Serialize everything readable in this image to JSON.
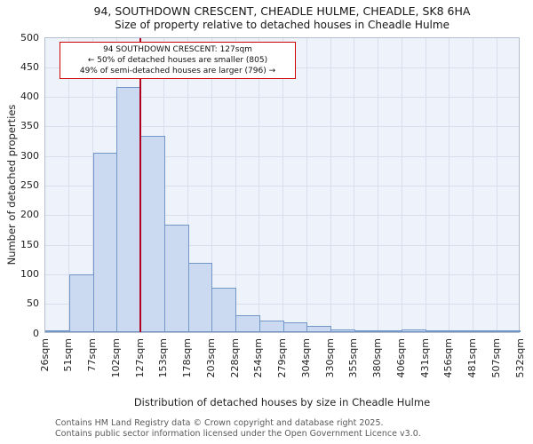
{
  "chart_data": {
    "type": "bar",
    "title": "94, SOUTHDOWN CRESCENT, CHEADLE HULME, CHEADLE, SK8 6HA",
    "subtitle": "Size of property relative to detached houses in Cheadle Hulme",
    "xlabel": "Distribution of detached houses by size in Cheadle Hulme",
    "ylabel": "Number of detached properties",
    "ylim": [
      0,
      500
    ],
    "ytick_step": 50,
    "grid": true,
    "categories": [
      "26sqm",
      "51sqm",
      "77sqm",
      "102sqm",
      "127sqm",
      "153sqm",
      "178sqm",
      "203sqm",
      "228sqm",
      "254sqm",
      "279sqm",
      "304sqm",
      "330sqm",
      "355sqm",
      "380sqm",
      "406sqm",
      "431sqm",
      "456sqm",
      "481sqm",
      "507sqm",
      "532sqm"
    ],
    "values": [
      3,
      98,
      303,
      415,
      332,
      181,
      117,
      75,
      29,
      20,
      17,
      10,
      4,
      2,
      3,
      5,
      2,
      3,
      1,
      2
    ],
    "marker": {
      "at_label": "127sqm",
      "tick_index": 4,
      "color": "#b00020"
    },
    "annotation": {
      "line1": "94 SOUTHDOWN CRESCENT: 127sqm",
      "line2": "← 50% of detached houses are smaller (805)",
      "line3": "49% of semi-detached houses are larger (796) →"
    },
    "colors": {
      "bar_fill": "#ccdaf1",
      "bar_border": "#7396c8",
      "marker_line": "#b00020",
      "annotation_border": "#cc0000",
      "grid": "#d8deeb",
      "plot_bg": "#eef2fa"
    }
  },
  "footer": {
    "line1": "Contains HM Land Registry data © Crown copyright and database right 2025.",
    "line2": "Contains public sector information licensed under the Open Government Licence v3.0."
  }
}
